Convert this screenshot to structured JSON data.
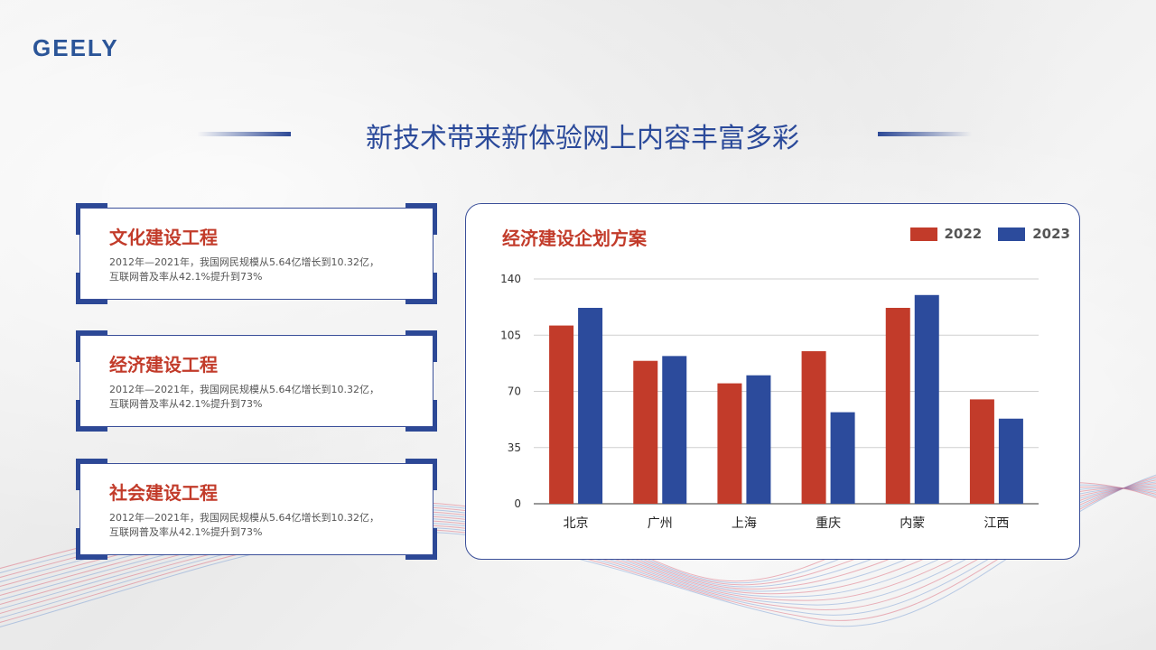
{
  "brand": {
    "logo_text": "GEELY"
  },
  "page": {
    "title": "新技术带来新体验网上内容丰富多彩"
  },
  "cards": [
    {
      "title": "文化建设工程",
      "text_line1": "2012年—2021年，我国网民规模从5.64亿增长到10.32亿，",
      "text_line2": "互联网普及率从42.1%提升到73%"
    },
    {
      "title": "经济建设工程",
      "text_line1": "2012年—2021年，我国网民规模从5.64亿增长到10.32亿，",
      "text_line2": "互联网普及率从42.1%提升到73%"
    },
    {
      "title": "社会建设工程",
      "text_line1": "2012年—2021年，我国网民规模从5.64亿增长到10.32亿，",
      "text_line2": "互联网普及率从42.1%提升到73%"
    }
  ],
  "colors": {
    "accent_red": "#c23b2a",
    "accent_blue": "#2c4896",
    "title_blue": "#2b4a9a"
  },
  "chart_data": {
    "type": "bar",
    "title": "经济建设企划方案",
    "categories": [
      "北京",
      "广州",
      "上海",
      "重庆",
      "内蒙",
      "江西"
    ],
    "series": [
      {
        "name": "2022",
        "color": "#c23b2a",
        "values": [
          111,
          89,
          75,
          95,
          122,
          65
        ]
      },
      {
        "name": "2023",
        "color": "#2c4b9c",
        "values": [
          122,
          92,
          80,
          57,
          130,
          53
        ]
      }
    ],
    "yticks": [
      0,
      35,
      70,
      105,
      140
    ],
    "ylim": [
      0,
      140
    ],
    "grid": true,
    "legend": "top-right"
  }
}
